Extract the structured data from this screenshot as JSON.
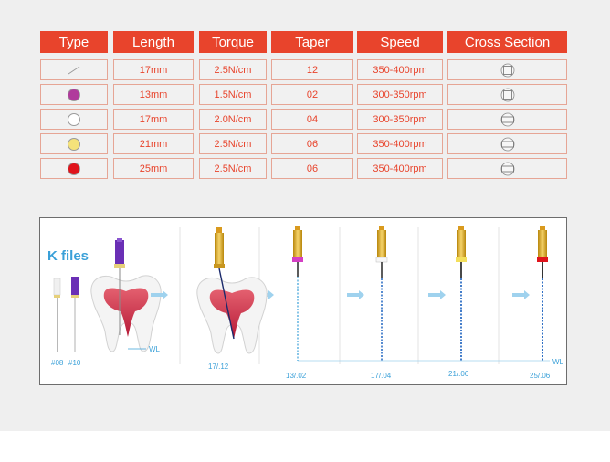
{
  "table": {
    "headers": [
      "Type",
      "Length",
      "Torque",
      "Taper",
      "Speed",
      "Cross Section"
    ],
    "rows": [
      {
        "type_color": "none",
        "type_icon": "file-line-icon",
        "length": "17mm",
        "torque": "2.5N/cm",
        "taper": "12",
        "speed": "350-400rpm",
        "cross_section": "square-cross-section-icon"
      },
      {
        "type_color": "#b03a9c",
        "type_icon": "purple-dot-icon",
        "length": "13mm",
        "torque": "1.5N/cm",
        "taper": "02",
        "speed": "300-350rpm",
        "cross_section": "square-cross-section-icon"
      },
      {
        "type_color": "#ffffff",
        "type_icon": "white-dot-icon",
        "length": "17mm",
        "torque": "2.0N/cm",
        "taper": "04",
        "speed": "300-350rpm",
        "cross_section": "rectangle-cross-section-icon"
      },
      {
        "type_color": "#f5e27a",
        "type_icon": "yellow-dot-icon",
        "length": "21mm",
        "torque": "2.5N/cm",
        "taper": "06",
        "speed": "350-400rpm",
        "cross_section": "rectangle-cross-section-icon"
      },
      {
        "type_color": "#e0141c",
        "type_icon": "red-dot-icon",
        "length": "25mm",
        "torque": "2.5N/cm",
        "taper": "06",
        "speed": "350-400rpm",
        "cross_section": "rectangle-cross-section-icon"
      }
    ]
  },
  "diagram": {
    "title": "K files",
    "k_file_labels": [
      "#08",
      "#10"
    ],
    "wl_label": "WL",
    "steps": [
      "17/.12",
      "13/.02",
      "17/.04",
      "21/.06",
      "25/.06"
    ]
  },
  "colors": {
    "accent": "#e8442c",
    "label_blue": "#3aa0d8"
  }
}
